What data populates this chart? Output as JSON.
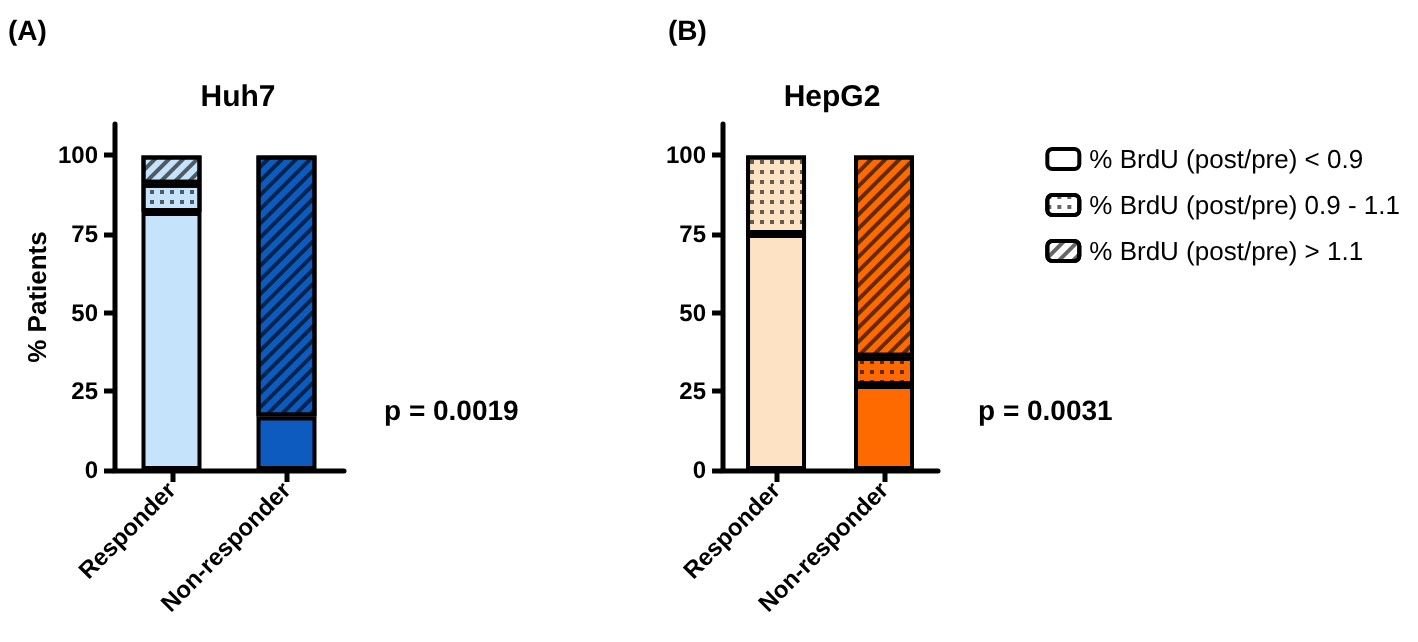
{
  "chart_data": [
    {
      "type": "bar",
      "title": "Huh7",
      "ylabel": "% Patients",
      "categories": [
        "Responder",
        "Non-responder"
      ],
      "stacked": true,
      "ylim": [
        0,
        110
      ],
      "yticks": [
        0,
        25,
        50,
        75,
        100
      ],
      "grid": false,
      "legend": false,
      "annotations": [
        "(A)",
        "p = 0.0019"
      ],
      "series": [
        {
          "colors": [
            "#c5e4fb",
            "#0d5bbf"
          ],
          "values": [
            82,
            17
          ]
        },
        {
          "colors": [
            "#c5e4fb",
            "#0d5bbf"
          ],
          "values": [
            9,
            0
          ]
        },
        {
          "colors": [
            "#c5e4fb",
            "#0d5bbf"
          ],
          "values": [
            9,
            83
          ]
        }
      ]
    },
    {
      "type": "bar",
      "title": "HepG2",
      "categories": [
        "Responder",
        "Non-responder"
      ],
      "stacked": true,
      "ylim": [
        0,
        110
      ],
      "yticks": [
        0,
        25,
        50,
        75,
        100
      ],
      "grid": false,
      "legend": "top right",
      "annotations": [
        "(B)",
        "p = 0.0031"
      ],
      "series": [
        {
          "name": "% BrdU (post/pre) < 0.9",
          "colors": [
            "#fde3c4",
            "#ff6a00"
          ],
          "values": [
            75,
            27
          ]
        },
        {
          "name": "% BrdU (post/pre) 0.9 - 1.1",
          "colors": [
            "#fde3c4",
            "#ff6a00"
          ],
          "values": [
            25,
            9
          ]
        },
        {
          "name": "% BrdU (post/pre) > 1.1",
          "colors": [
            "#fde3c4",
            "#ff6a00"
          ],
          "values": [
            0,
            64
          ]
        }
      ]
    }
  ]
}
